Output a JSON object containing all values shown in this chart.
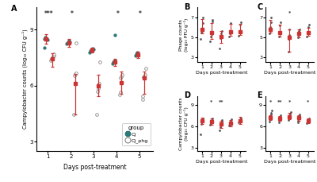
{
  "panel_A": {
    "days": [
      1,
      2,
      3,
      4,
      5
    ],
    "Cj_mean": [
      8.5,
      8.3,
      7.9,
      7.25,
      7.65
    ],
    "Cj_sd": [
      0.25,
      0.22,
      0.12,
      0.2,
      0.18
    ],
    "Cj_points": [
      [
        8.05,
        8.5,
        8.6,
        8.55,
        8.5,
        8.45
      ],
      [
        8.25,
        8.3,
        8.35,
        8.4,
        8.35
      ],
      [
        7.8,
        7.85,
        7.9,
        7.95,
        8.0,
        7.95
      ],
      [
        7.2,
        7.25,
        7.3,
        7.35,
        8.7
      ],
      [
        7.6,
        7.7,
        7.75,
        7.8,
        7.75
      ]
    ],
    "Cjphg_mean": [
      7.45,
      6.1,
      6.0,
      6.15,
      6.4
    ],
    "Cjphg_err_low": [
      0.45,
      1.65,
      0.55,
      0.6,
      0.85
    ],
    "Cjphg_err_high": [
      0.28,
      0.55,
      0.6,
      0.6,
      0.35
    ],
    "Cjphg_points": [
      [
        7.35,
        7.42,
        7.5,
        7.55,
        7.62,
        7.68
      ],
      [
        4.45,
        6.55,
        6.62,
        6.68,
        8.3
      ],
      [
        4.45,
        5.7,
        5.85,
        6.05,
        6.1,
        7.28
      ],
      [
        5.52,
        5.65,
        6.42,
        6.52,
        6.58
      ],
      [
        5.25,
        5.42,
        6.45,
        6.52,
        6.58,
        6.92
      ]
    ],
    "significance": [
      "***",
      "*",
      "",
      "*",
      "*"
    ],
    "ylabel": "Campylobacter counts (log₁₀ CFU g⁻¹)",
    "xlabel": "Days post-treatment",
    "ylim": [
      2.5,
      10.2
    ],
    "yticks": [
      3,
      6,
      9
    ]
  },
  "panel_B": {
    "days": [
      1,
      2,
      3,
      4,
      5
    ],
    "mean": [
      5.8,
      5.45,
      5.1,
      5.55,
      5.55
    ],
    "err_low": [
      0.45,
      0.6,
      0.7,
      0.4,
      0.35
    ],
    "err_high": [
      1.05,
      1.0,
      0.5,
      0.8,
      0.8
    ],
    "points": [
      [
        4.85,
        5.45,
        5.65,
        5.85,
        6.45,
        6.95
      ],
      [
        4.55,
        5.1,
        5.3,
        5.55,
        6.55,
        6.7
      ],
      [
        3.85,
        4.9,
        5.1,
        5.4,
        5.6
      ],
      [
        5.05,
        5.35,
        5.55,
        6.4
      ],
      [
        5.15,
        5.45,
        5.55,
        6.3,
        6.48
      ]
    ],
    "significance": [
      "",
      "",
      "",
      "",
      ""
    ],
    "ylabel": "Phage counts\n(log₁₀ PFU g⁻¹)",
    "xlabel": "Days post-treatment",
    "ylim": [
      2.5,
      8.0
    ],
    "yticks": [
      3,
      5,
      7
    ]
  },
  "panel_C": {
    "days": [
      1,
      2,
      3,
      4,
      5
    ],
    "mean": [
      5.8,
      5.5,
      5.0,
      5.35,
      5.5
    ],
    "err_low": [
      0.35,
      0.45,
      1.45,
      0.35,
      0.38
    ],
    "err_high": [
      0.95,
      0.75,
      0.75,
      0.45,
      0.48
    ],
    "points": [
      [
        5.35,
        5.75,
        6.0,
        6.5,
        7.0
      ],
      [
        5.1,
        5.42,
        5.58,
        6.2,
        6.5
      ],
      [
        3.55,
        4.82,
        5.2,
        5.8
      ],
      [
        4.95,
        5.22,
        5.42,
        5.6,
        5.82
      ],
      [
        5.1,
        5.42,
        5.58,
        6.0,
        6.3
      ]
    ],
    "significance": [
      "",
      "",
      "*",
      "",
      ""
    ],
    "ylabel": "",
    "xlabel": "Days post-treatment",
    "ylim": [
      2.5,
      8.0
    ],
    "yticks": [
      3,
      5,
      7
    ]
  },
  "panel_D": {
    "days": [
      1,
      2,
      3,
      4,
      5
    ],
    "mean": [
      6.7,
      6.6,
      6.3,
      6.45,
      6.8
    ],
    "err_low": [
      0.45,
      0.45,
      0.55,
      0.45,
      0.45
    ],
    "err_high": [
      0.45,
      0.45,
      0.45,
      0.45,
      0.45
    ],
    "points": [
      [
        4.85,
        6.25,
        6.85,
        6.95,
        7.05
      ],
      [
        6.2,
        6.45,
        6.65,
        6.85,
        7.05
      ],
      [
        5.45,
        5.85,
        6.25,
        6.45,
        6.65,
        6.9
      ],
      [
        6.05,
        6.25,
        6.5,
        6.75,
        7.0
      ],
      [
        6.55,
        6.65,
        6.8,
        6.95,
        7.1
      ]
    ],
    "significance": [
      "",
      "*",
      "**",
      "",
      ""
    ],
    "ylabel": "Campylobacter counts\n(log₁₀ CFU g⁻¹)",
    "xlabel": "Days post-treatment",
    "ylim": [
      2.5,
      10.2
    ],
    "yticks": [
      3,
      6,
      9
    ]
  },
  "panel_E": {
    "days": [
      1,
      2,
      3,
      4,
      5
    ],
    "mean": [
      7.2,
      7.05,
      7.35,
      7.15,
      6.75
    ],
    "err_low": [
      0.38,
      0.35,
      0.35,
      0.45,
      0.35
    ],
    "err_high": [
      0.38,
      0.35,
      0.55,
      0.35,
      0.35
    ],
    "points": [
      [
        6.65,
        7.1,
        7.45,
        7.6,
        7.85,
        8.15
      ],
      [
        6.55,
        6.85,
        7.05,
        7.25,
        7.55
      ],
      [
        6.85,
        7.15,
        7.35,
        7.58,
        7.75,
        7.92
      ],
      [
        6.55,
        6.8,
        7.05,
        7.42,
        7.62
      ],
      [
        6.42,
        6.62,
        6.82,
        6.95,
        7.12
      ]
    ],
    "significance": [
      "*",
      "**",
      "*",
      "",
      "*"
    ],
    "ylabel": "",
    "xlabel": "Days post-treatment",
    "ylim": [
      2.5,
      10.2
    ],
    "yticks": [
      3,
      6,
      9
    ]
  },
  "colors": {
    "Cj_fill": "#2a7b7b",
    "Cj_edge": "#1a5f5f",
    "open_edge": "#888888",
    "red": "#cc3333",
    "dark_dot": "#555555",
    "sig_color": "#333333"
  }
}
